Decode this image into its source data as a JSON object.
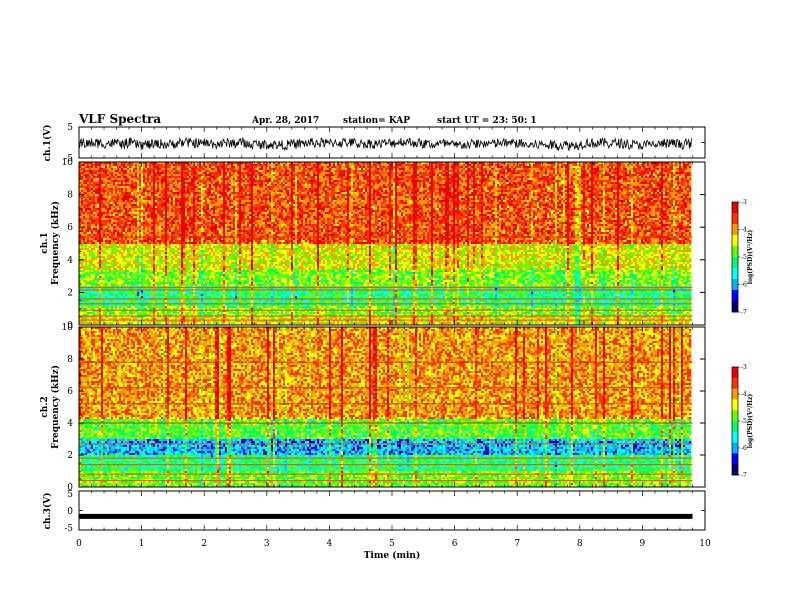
{
  "header": {
    "title": "VLF Spectra",
    "date": "Apr. 28, 2017",
    "station": "station= KAP",
    "start_time": "start  UT  =   23: 50: 1"
  },
  "colors": {
    "spectrogram_ramp": [
      "#00007a",
      "#0000ff",
      "#00b4ff",
      "#00ffff",
      "#00ff66",
      "#66ff00",
      "#ffff00",
      "#ff9900",
      "#ff3300",
      "#ee0000"
    ],
    "trace": "#000000",
    "frame": "#000000"
  },
  "chart_data": [
    {
      "type": "line",
      "ylabel": "ch.1(V)",
      "xlim": [
        0,
        10
      ],
      "ylim": [
        -5,
        5
      ],
      "yticks": [
        "5",
        "-5"
      ],
      "series": [
        {
          "description_level_mean": -0.3,
          "amplitude_range": [
            -3,
            2.5
          ]
        }
      ]
    },
    {
      "type": "heatmap",
      "ylabel": "ch.1\nFrequency (kHz)",
      "xlim": [
        0,
        10
      ],
      "ylim": [
        0,
        10
      ],
      "yticks": [
        "0",
        "2",
        "4",
        "6",
        "8",
        "10"
      ],
      "data_extent_min": 9.8,
      "bands": [
        {
          "f_from": 0,
          "f_to": 0.6,
          "log_psd": -4.4
        },
        {
          "f_from": 0.6,
          "f_to": 1.2,
          "log_psd": -4.8
        },
        {
          "f_from": 1.2,
          "f_to": 2.4,
          "log_psd": -5.2
        },
        {
          "f_from": 2.4,
          "f_to": 3.4,
          "log_psd": -4.8
        },
        {
          "f_from": 3.4,
          "f_to": 5.0,
          "log_psd": -4.4
        },
        {
          "f_from": 5.0,
          "f_to": 10.0,
          "log_psd": -3.7
        }
      ],
      "line_frequencies": [
        0.3,
        0.55,
        0.9,
        1.3,
        1.6,
        2.15,
        2.3,
        5.4
      ],
      "colorbar": {
        "label": "log(PSD)(V²/Hz)",
        "min": -7,
        "max": -3,
        "ticks": [
          "-3",
          "-4",
          "-5",
          "-6",
          "-7"
        ]
      }
    },
    {
      "type": "heatmap",
      "ylabel": "ch.2\nFrequency (kHz)",
      "xlim": [
        0,
        10
      ],
      "ylim": [
        0,
        10
      ],
      "yticks": [
        "0",
        "2",
        "4",
        "6",
        "8",
        "10"
      ],
      "data_extent_min": 9.8,
      "bands": [
        {
          "f_from": 0,
          "f_to": 1.0,
          "log_psd": -4.8
        },
        {
          "f_from": 1.0,
          "f_to": 2.0,
          "log_psd": -5.2
        },
        {
          "f_from": 2.0,
          "f_to": 3.0,
          "log_psd": -5.9
        },
        {
          "f_from": 3.0,
          "f_to": 4.2,
          "log_psd": -4.9
        },
        {
          "f_from": 4.2,
          "f_to": 10.0,
          "log_psd": -4.0
        }
      ],
      "line_frequencies": [
        0.4,
        0.8,
        1.4,
        1.8,
        2.7,
        4.0,
        5.2,
        6.2,
        7.8
      ],
      "colorbar": {
        "label": "log(PSD)(V²/Hz)",
        "min": -7,
        "max": -3,
        "ticks": [
          "-3",
          "-4",
          "-5",
          "-6",
          "-7"
        ]
      }
    },
    {
      "type": "line",
      "ylabel": "ch.3(V)",
      "xlabel": "Time  (min)",
      "xlim": [
        0,
        10
      ],
      "ylim": [
        -5,
        5
      ],
      "yticks": [
        "5",
        "0",
        "-5"
      ],
      "xticks": [
        "0",
        "1",
        "2",
        "3",
        "4",
        "5",
        "6",
        "7",
        "8",
        "9",
        "10"
      ],
      "series": [
        {
          "constant_value": -1.5
        }
      ]
    }
  ]
}
